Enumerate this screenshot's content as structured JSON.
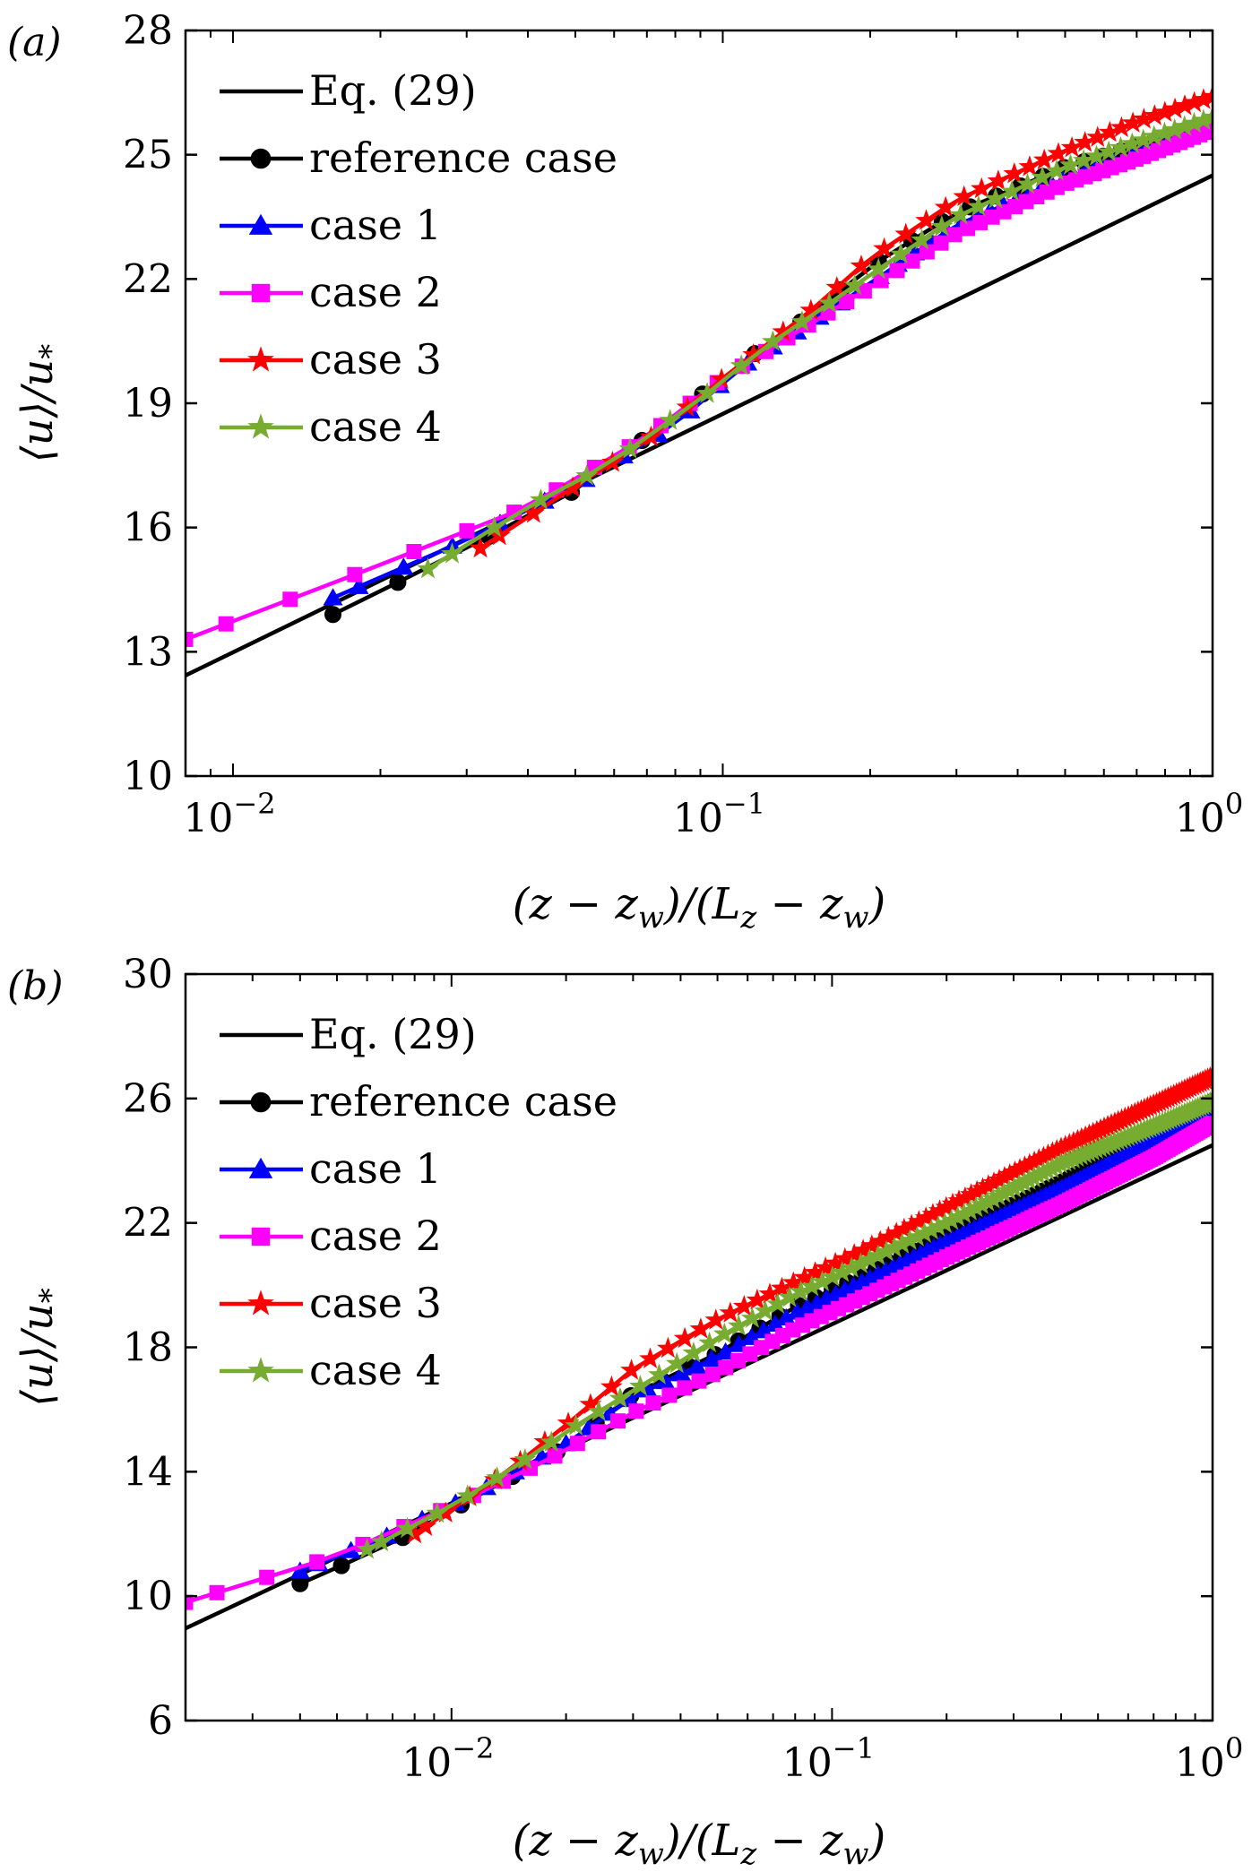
{
  "colors": {
    "eq29": "#000000",
    "reference": "#000000",
    "case1": "#0000ff",
    "case2": "#ff00ff",
    "case3": "#ff0000",
    "case4": "#77ac30"
  },
  "chart_data": [
    {
      "type": "line",
      "panel_label": "(a)",
      "xlabel": "(z − z_w)/(L_z − z_w)",
      "ylabel": "⟨u⟩/u_*",
      "xscale": "log",
      "xlim": [
        0.008,
        1.0
      ],
      "ylim": [
        10,
        28
      ],
      "yticks": [
        10,
        13,
        16,
        19,
        22,
        25,
        28
      ],
      "xticks": [
        {
          "value": 0.01,
          "base": "10",
          "exp": "−2"
        },
        {
          "value": 0.1,
          "base": "10",
          "exp": "−1"
        },
        {
          "value": 1,
          "base": "10",
          "exp": "0"
        }
      ],
      "grid": false,
      "legend_position": "top-left",
      "series": [
        {
          "name": "Eq. (29)",
          "color": "eq29",
          "marker": "none",
          "kind": "loglaw",
          "y_at_1": 24.5,
          "slope": 2.5,
          "x_start": 0.008,
          "x_end": 1.0
        },
        {
          "name": "reference case",
          "color": "reference",
          "marker": "circle",
          "kind": "profile",
          "knots_x": [
            0.016,
            0.03,
            0.05,
            0.08,
            0.11,
            0.15,
            0.2,
            0.3,
            0.5,
            0.7,
            1.0
          ],
          "knots_y": [
            13.9,
            15.5,
            16.9,
            18.7,
            20.0,
            21.1,
            22.3,
            23.6,
            24.7,
            25.2,
            25.8
          ],
          "n_points": 26
        },
        {
          "name": "case 1",
          "color": "case1",
          "marker": "triangle",
          "kind": "profile",
          "knots_x": [
            0.016,
            0.03,
            0.05,
            0.08,
            0.11,
            0.15,
            0.2,
            0.3,
            0.5,
            0.7,
            1.0
          ],
          "knots_y": [
            14.3,
            15.7,
            17.0,
            18.5,
            19.9,
            20.9,
            21.9,
            23.3,
            24.4,
            25.0,
            25.7
          ],
          "n_points": 48
        },
        {
          "name": "case 2",
          "color": "case2",
          "marker": "square",
          "kind": "profile",
          "knots_x": [
            0.008,
            0.02,
            0.04,
            0.07,
            0.1,
            0.15,
            0.2,
            0.3,
            0.5,
            0.7,
            1.0
          ],
          "knots_y": [
            13.3,
            15.1,
            16.5,
            18.2,
            19.6,
            20.9,
            21.8,
            23.1,
            24.3,
            24.9,
            25.6
          ],
          "n_points": 55
        },
        {
          "name": "case 3",
          "color": "case3",
          "marker": "star",
          "kind": "profile",
          "knots_x": [
            0.032,
            0.05,
            0.07,
            0.1,
            0.15,
            0.2,
            0.3,
            0.5,
            0.7,
            1.0
          ],
          "knots_y": [
            15.5,
            17.0,
            18.1,
            19.6,
            21.2,
            22.5,
            23.9,
            25.1,
            25.8,
            26.4
          ],
          "n_points": 38
        },
        {
          "name": "case 4",
          "color": "case4",
          "marker": "star",
          "kind": "profile",
          "knots_x": [
            0.025,
            0.04,
            0.058,
            0.09,
            0.12,
            0.16,
            0.2,
            0.3,
            0.5,
            0.7,
            1.0
          ],
          "knots_y": [
            15.0,
            16.5,
            17.5,
            19.1,
            20.3,
            21.3,
            22.1,
            23.5,
            24.7,
            25.3,
            25.9
          ],
          "n_points": 38
        }
      ]
    },
    {
      "type": "line",
      "panel_label": "(b)",
      "xlabel": "(z − z_w)/(L_z − z_w)",
      "ylabel": "⟨u⟩/u_*",
      "xscale": "log",
      "xlim": [
        0.002,
        1.0
      ],
      "ylim": [
        6,
        30
      ],
      "yticks": [
        6,
        10,
        14,
        18,
        22,
        26,
        30
      ],
      "xticks": [
        {
          "value": 0.01,
          "base": "10",
          "exp": "−2"
        },
        {
          "value": 0.1,
          "base": "10",
          "exp": "−1"
        },
        {
          "value": 1,
          "base": "10",
          "exp": "0"
        }
      ],
      "grid": false,
      "legend_position": "top-left",
      "series": [
        {
          "name": "Eq. (29)",
          "color": "eq29",
          "marker": "none",
          "kind": "loglaw",
          "y_at_1": 24.5,
          "slope": 2.5,
          "x_start": 0.002,
          "x_end": 1.0
        },
        {
          "name": "reference case",
          "color": "reference",
          "marker": "circle",
          "kind": "profile",
          "knots_x": [
            0.004,
            0.007,
            0.012,
            0.02,
            0.03,
            0.05,
            0.08,
            0.12,
            0.2,
            0.4,
            0.7,
            1.0
          ],
          "knots_y": [
            10.4,
            11.7,
            13.3,
            14.8,
            16.5,
            17.8,
            19.3,
            20.3,
            21.6,
            23.3,
            24.9,
            25.9
          ],
          "n_points": 70
        },
        {
          "name": "case 1",
          "color": "case1",
          "marker": "triangle",
          "kind": "profile",
          "knots_x": [
            0.004,
            0.007,
            0.012,
            0.02,
            0.03,
            0.05,
            0.08,
            0.12,
            0.2,
            0.4,
            0.7,
            1.0
          ],
          "knots_y": [
            10.8,
            12.0,
            13.4,
            14.9,
            16.4,
            17.7,
            19.1,
            20.1,
            21.4,
            23.1,
            24.6,
            25.6
          ],
          "n_points": 120
        },
        {
          "name": "case 2",
          "color": "case2",
          "marker": "square",
          "kind": "profile",
          "knots_x": [
            0.002,
            0.005,
            0.01,
            0.018,
            0.03,
            0.05,
            0.08,
            0.12,
            0.2,
            0.4,
            0.7,
            1.0
          ],
          "knots_y": [
            9.8,
            11.3,
            12.9,
            14.4,
            15.9,
            17.2,
            18.6,
            19.6,
            20.9,
            22.6,
            24.1,
            25.2
          ],
          "n_points": 130
        },
        {
          "name": "case 3",
          "color": "case3",
          "marker": "star",
          "kind": "profile",
          "knots_x": [
            0.008,
            0.014,
            0.02,
            0.03,
            0.05,
            0.08,
            0.12,
            0.2,
            0.4,
            0.7,
            1.0
          ],
          "knots_y": [
            12.0,
            14.0,
            15.5,
            17.3,
            18.9,
            20.1,
            21.1,
            22.5,
            24.4,
            25.8,
            26.7
          ],
          "n_points": 110
        },
        {
          "name": "case 4",
          "color": "case4",
          "marker": "star",
          "kind": "profile",
          "knots_x": [
            0.006,
            0.01,
            0.014,
            0.022,
            0.035,
            0.05,
            0.08,
            0.12,
            0.2,
            0.4,
            0.7,
            1.0
          ],
          "knots_y": [
            11.5,
            12.9,
            14.0,
            15.6,
            17.1,
            18.3,
            19.7,
            20.7,
            22.0,
            23.9,
            25.1,
            25.9
          ],
          "n_points": 110
        }
      ]
    }
  ]
}
